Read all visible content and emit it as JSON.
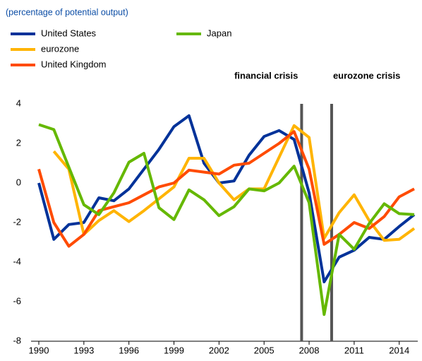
{
  "chart_data": {
    "type": "line",
    "subtitle": "(percentage of potential output)",
    "x": [
      1990,
      1991,
      1992,
      1993,
      1994,
      1995,
      1996,
      1997,
      1998,
      1999,
      2000,
      2001,
      2002,
      2003,
      2004,
      2005,
      2006,
      2007,
      2008,
      2009,
      2010,
      2011,
      2012,
      2013,
      2014,
      2015
    ],
    "series": [
      {
        "name": "United States",
        "color": "#003299",
        "values": [
          0,
          -2.85,
          -2.1,
          -2.0,
          -0.75,
          -0.9,
          -0.3,
          0.7,
          1.7,
          2.85,
          3.4,
          1.0,
          0.0,
          0.1,
          1.4,
          2.35,
          2.65,
          2.2,
          -0.5,
          -5.0,
          -3.75,
          -3.4,
          -2.75,
          -2.85,
          -2.2,
          -1.6
        ]
      },
      {
        "name": "eurozone",
        "color": "#ffb400",
        "values": [
          null,
          1.6,
          0.7,
          -2.6,
          -1.9,
          -1.4,
          -1.95,
          -1.4,
          -0.8,
          -0.2,
          1.25,
          1.25,
          0.0,
          -0.85,
          -0.3,
          -0.3,
          1.3,
          2.9,
          2.3,
          -2.8,
          -1.5,
          -0.6,
          -1.9,
          -2.9,
          -2.85,
          -2.3
        ]
      },
      {
        "name": "United Kingdom",
        "color": "#ff4b00",
        "values": [
          0.7,
          -2.0,
          -3.2,
          -2.6,
          -1.4,
          -1.2,
          -1.0,
          -0.6,
          -0.2,
          0.0,
          0.65,
          0.55,
          0.45,
          0.9,
          1.0,
          1.5,
          2.0,
          2.6,
          0.7,
          -3.1,
          -2.6,
          -2.0,
          -2.3,
          -1.7,
          -0.7,
          -0.3
        ]
      },
      {
        "name": "Japan",
        "color": "#65b800",
        "values": [
          2.95,
          2.7,
          0.8,
          -1.1,
          -1.6,
          -0.5,
          1.05,
          1.5,
          -1.25,
          -1.85,
          -0.35,
          -0.85,
          -1.65,
          -1.2,
          -0.3,
          -0.4,
          0.0,
          0.85,
          -1.0,
          -6.65,
          -2.6,
          -3.35,
          -2.05,
          -1.05,
          -1.55,
          -1.6
        ]
      }
    ],
    "xlim": [
      1990,
      2015
    ],
    "xticks": [
      1990,
      1993,
      1996,
      1999,
      2002,
      2005,
      2008,
      2011,
      2014
    ],
    "ylim": [
      -8,
      4
    ],
    "yticks": [
      -8,
      -6,
      -4,
      -2,
      0,
      2,
      4
    ],
    "vlines": [
      {
        "x": 2007.5,
        "label": "financial crisis",
        "color": "#555555"
      },
      {
        "x": 2009.5,
        "label": "eurozone crisis",
        "color": "#555555"
      }
    ],
    "grid": false
  }
}
